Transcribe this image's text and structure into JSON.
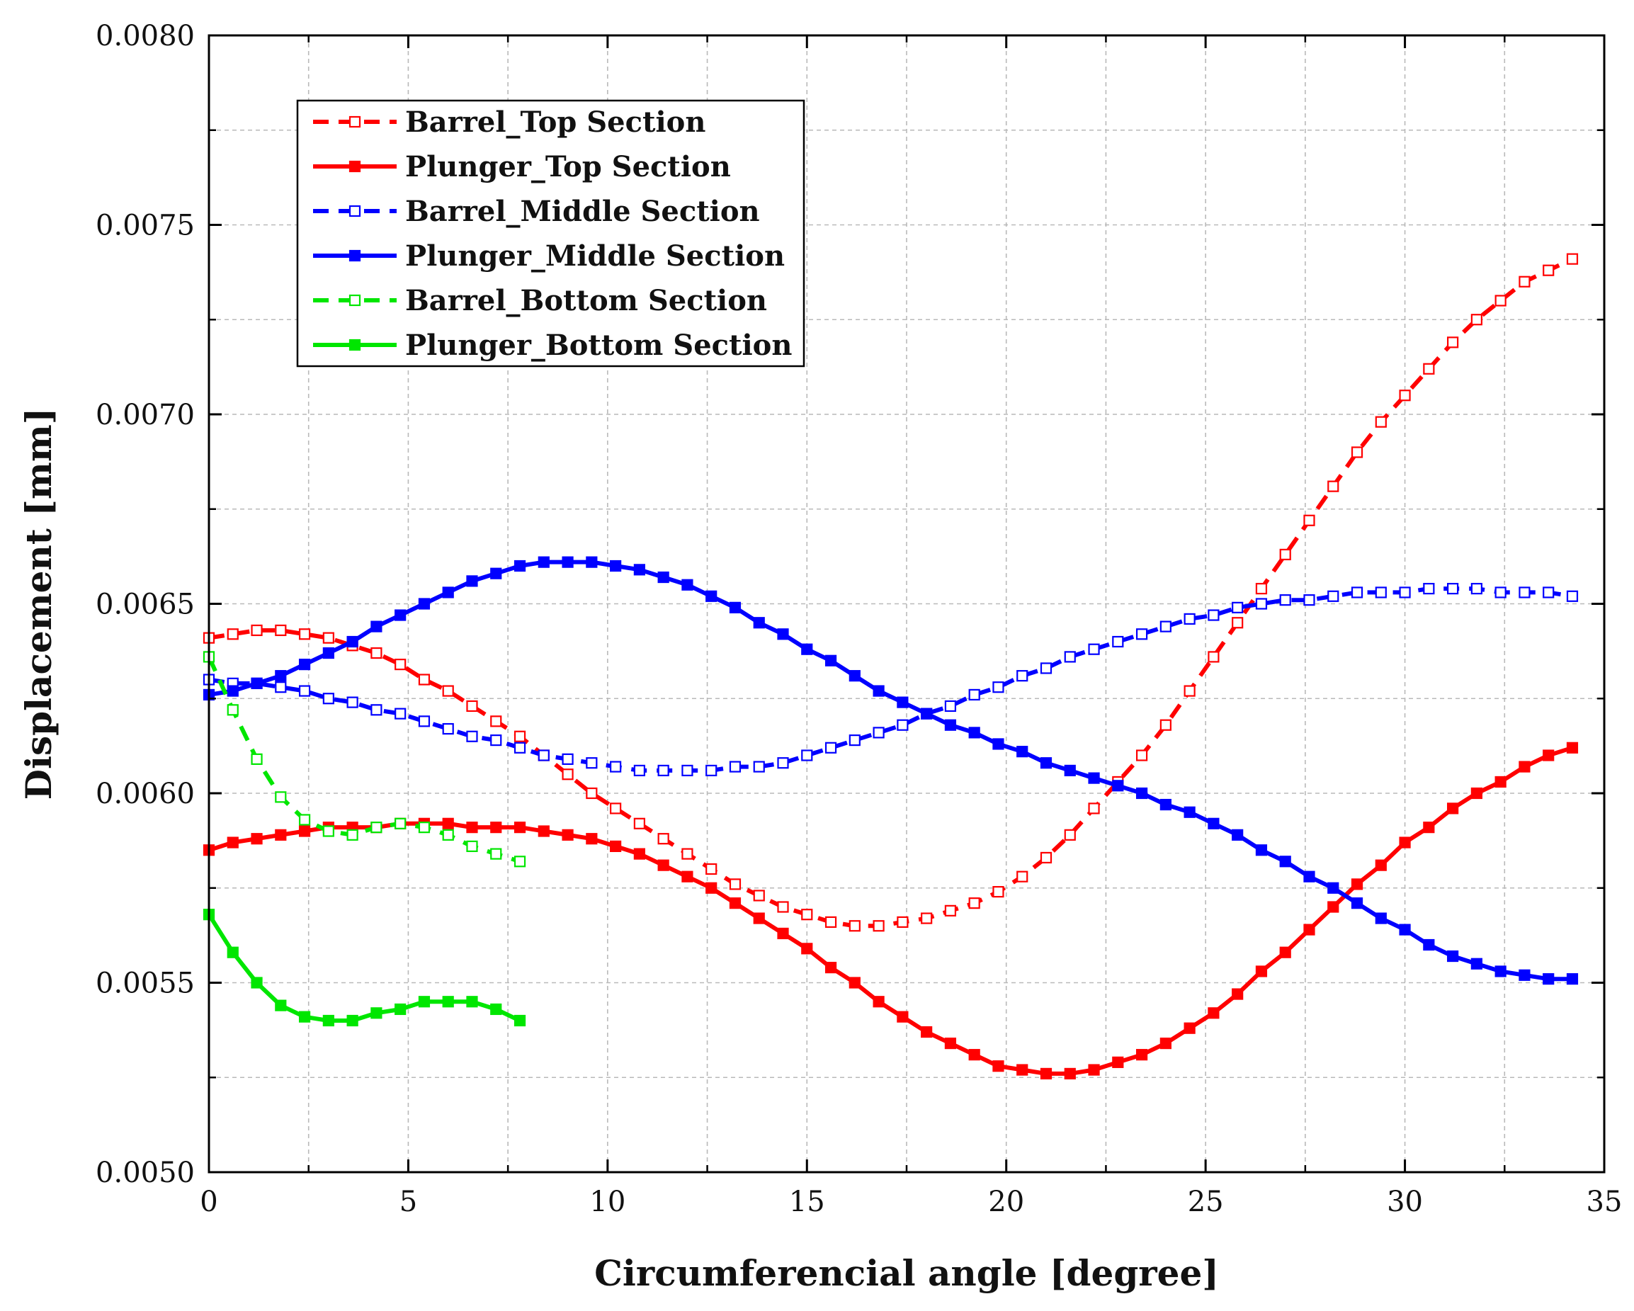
{
  "chart_data": {
    "type": "line",
    "title": "",
    "xlabel": "Circumferencial angle [degree]",
    "ylabel": "Displacement [mm]",
    "xlim": [
      0,
      35
    ],
    "ylim": [
      0.005,
      0.008
    ],
    "x_ticks": [
      0,
      5,
      10,
      15,
      20,
      25,
      30,
      35
    ],
    "x_tick_labels": [
      "0",
      "5",
      "10",
      "15",
      "20",
      "25",
      "30",
      "35"
    ],
    "y_ticks": [
      0.005,
      0.0055,
      0.006,
      0.0065,
      0.007,
      0.0075,
      0.008
    ],
    "y_tick_labels": [
      "0.0050",
      "0.0055",
      "0.0060",
      "0.0065",
      "0.0070",
      "0.0075",
      "0.0080"
    ],
    "grid": true,
    "legend_position": "top-left",
    "series": [
      {
        "name": "Barrel_Top Section",
        "color": "#ff0000",
        "line": "dashed",
        "marker": "open-square",
        "x": [
          0,
          0.6,
          1.2,
          1.8,
          2.4,
          3.0,
          3.6,
          4.2,
          4.8,
          5.4,
          6.0,
          6.6,
          7.2,
          7.8,
          8.4,
          9.0,
          9.6,
          10.2,
          10.8,
          11.4,
          12.0,
          12.6,
          13.2,
          13.8,
          14.4,
          15.0,
          15.6,
          16.2,
          16.8,
          17.4,
          18.0,
          18.6,
          19.2,
          19.8,
          20.4,
          21.0,
          21.6,
          22.2,
          22.8,
          23.4,
          24.0,
          24.6,
          25.2,
          25.8,
          26.4,
          27.0,
          27.6,
          28.2,
          28.8,
          29.4,
          30.0,
          30.6,
          31.2,
          31.8,
          32.4,
          33.0,
          33.6,
          34.2
        ],
        "values": [
          0.00641,
          0.00642,
          0.00643,
          0.00643,
          0.00642,
          0.00641,
          0.00639,
          0.00637,
          0.00634,
          0.0063,
          0.00627,
          0.00623,
          0.00619,
          0.00615,
          0.0061,
          0.00605,
          0.006,
          0.00596,
          0.00592,
          0.00588,
          0.00584,
          0.0058,
          0.00576,
          0.00573,
          0.0057,
          0.00568,
          0.00566,
          0.00565,
          0.00565,
          0.00566,
          0.00567,
          0.00569,
          0.00571,
          0.00574,
          0.00578,
          0.00583,
          0.00589,
          0.00596,
          0.00603,
          0.0061,
          0.00618,
          0.00627,
          0.00636,
          0.00645,
          0.00654,
          0.00663,
          0.00672,
          0.00681,
          0.0069,
          0.00698,
          0.00705,
          0.00712,
          0.00719,
          0.00725,
          0.0073,
          0.00735,
          0.00738,
          0.00741
        ]
      },
      {
        "name": "Plunger_Top Section",
        "color": "#ff0000",
        "line": "solid",
        "marker": "filled-square",
        "x": [
          0,
          0.6,
          1.2,
          1.8,
          2.4,
          3.0,
          3.6,
          4.2,
          4.8,
          5.4,
          6.0,
          6.6,
          7.2,
          7.8,
          8.4,
          9.0,
          9.6,
          10.2,
          10.8,
          11.4,
          12.0,
          12.6,
          13.2,
          13.8,
          14.4,
          15.0,
          15.6,
          16.2,
          16.8,
          17.4,
          18.0,
          18.6,
          19.2,
          19.8,
          20.4,
          21.0,
          21.6,
          22.2,
          22.8,
          23.4,
          24.0,
          24.6,
          25.2,
          25.8,
          26.4,
          27.0,
          27.6,
          28.2,
          28.8,
          29.4,
          30.0,
          30.6,
          31.2,
          31.8,
          32.4,
          33.0,
          33.6,
          34.2
        ],
        "values": [
          0.00585,
          0.00587,
          0.00588,
          0.00589,
          0.0059,
          0.00591,
          0.00591,
          0.00591,
          0.00592,
          0.00592,
          0.00592,
          0.00591,
          0.00591,
          0.00591,
          0.0059,
          0.00589,
          0.00588,
          0.00586,
          0.00584,
          0.00581,
          0.00578,
          0.00575,
          0.00571,
          0.00567,
          0.00563,
          0.00559,
          0.00554,
          0.0055,
          0.00545,
          0.00541,
          0.00537,
          0.00534,
          0.00531,
          0.00528,
          0.00527,
          0.00526,
          0.00526,
          0.00527,
          0.00529,
          0.00531,
          0.00534,
          0.00538,
          0.00542,
          0.00547,
          0.00553,
          0.00558,
          0.00564,
          0.0057,
          0.00576,
          0.00581,
          0.00587,
          0.00591,
          0.00596,
          0.006,
          0.00603,
          0.00607,
          0.0061,
          0.00612
        ]
      },
      {
        "name": "Barrel_Middle Section",
        "color": "#0000ff",
        "line": "dashed",
        "marker": "open-square",
        "x": [
          0,
          0.6,
          1.2,
          1.8,
          2.4,
          3.0,
          3.6,
          4.2,
          4.8,
          5.4,
          6.0,
          6.6,
          7.2,
          7.8,
          8.4,
          9.0,
          9.6,
          10.2,
          10.8,
          11.4,
          12.0,
          12.6,
          13.2,
          13.8,
          14.4,
          15.0,
          15.6,
          16.2,
          16.8,
          17.4,
          18.0,
          18.6,
          19.2,
          19.8,
          20.4,
          21.0,
          21.6,
          22.2,
          22.8,
          23.4,
          24.0,
          24.6,
          25.2,
          25.8,
          26.4,
          27.0,
          27.6,
          28.2,
          28.8,
          29.4,
          30.0,
          30.6,
          31.2,
          31.8,
          32.4,
          33.0,
          33.6,
          34.2
        ],
        "values": [
          0.0063,
          0.00629,
          0.00629,
          0.00628,
          0.00627,
          0.00625,
          0.00624,
          0.00622,
          0.00621,
          0.00619,
          0.00617,
          0.00615,
          0.00614,
          0.00612,
          0.0061,
          0.00609,
          0.00608,
          0.00607,
          0.00606,
          0.00606,
          0.00606,
          0.00606,
          0.00607,
          0.00607,
          0.00608,
          0.0061,
          0.00612,
          0.00614,
          0.00616,
          0.00618,
          0.00621,
          0.00623,
          0.00626,
          0.00628,
          0.00631,
          0.00633,
          0.00636,
          0.00638,
          0.0064,
          0.00642,
          0.00644,
          0.00646,
          0.00647,
          0.00649,
          0.0065,
          0.00651,
          0.00651,
          0.00652,
          0.00653,
          0.00653,
          0.00653,
          0.00654,
          0.00654,
          0.00654,
          0.00653,
          0.00653,
          0.00653,
          0.00652
        ]
      },
      {
        "name": "Plunger_Middle Section",
        "color": "#0000ff",
        "line": "solid",
        "marker": "filled-square",
        "x": [
          0,
          0.6,
          1.2,
          1.8,
          2.4,
          3.0,
          3.6,
          4.2,
          4.8,
          5.4,
          6.0,
          6.6,
          7.2,
          7.8,
          8.4,
          9.0,
          9.6,
          10.2,
          10.8,
          11.4,
          12.0,
          12.6,
          13.2,
          13.8,
          14.4,
          15.0,
          15.6,
          16.2,
          16.8,
          17.4,
          18.0,
          18.6,
          19.2,
          19.8,
          20.4,
          21.0,
          21.6,
          22.2,
          22.8,
          23.4,
          24.0,
          24.6,
          25.2,
          25.8,
          26.4,
          27.0,
          27.6,
          28.2,
          28.8,
          29.4,
          30.0,
          30.6,
          31.2,
          31.8,
          32.4,
          33.0,
          33.6,
          34.2
        ],
        "values": [
          0.00626,
          0.00627,
          0.00629,
          0.00631,
          0.00634,
          0.00637,
          0.0064,
          0.00644,
          0.00647,
          0.0065,
          0.00653,
          0.00656,
          0.00658,
          0.0066,
          0.00661,
          0.00661,
          0.00661,
          0.0066,
          0.00659,
          0.00657,
          0.00655,
          0.00652,
          0.00649,
          0.00645,
          0.00642,
          0.00638,
          0.00635,
          0.00631,
          0.00627,
          0.00624,
          0.00621,
          0.00618,
          0.00616,
          0.00613,
          0.00611,
          0.00608,
          0.00606,
          0.00604,
          0.00602,
          0.006,
          0.00597,
          0.00595,
          0.00592,
          0.00589,
          0.00585,
          0.00582,
          0.00578,
          0.00575,
          0.00571,
          0.00567,
          0.00564,
          0.0056,
          0.00557,
          0.00555,
          0.00553,
          0.00552,
          0.00551,
          0.00551
        ]
      },
      {
        "name": "Barrel_Bottom Section",
        "color": "#00e600",
        "line": "dashed",
        "marker": "open-square",
        "x": [
          0,
          0.6,
          1.2,
          1.8,
          2.4,
          3.0,
          3.6,
          4.2,
          4.8,
          5.4,
          6.0,
          6.6,
          7.2,
          7.8
        ],
        "values": [
          0.00636,
          0.00622,
          0.00609,
          0.00599,
          0.00593,
          0.0059,
          0.00589,
          0.00591,
          0.00592,
          0.00591,
          0.00589,
          0.00586,
          0.00584,
          0.00582
        ]
      },
      {
        "name": "Plunger_Bottom Section",
        "color": "#00e600",
        "line": "solid",
        "marker": "filled-square",
        "x": [
          0,
          0.6,
          1.2,
          1.8,
          2.4,
          3.0,
          3.6,
          4.2,
          4.8,
          5.4,
          6.0,
          6.6,
          7.2,
          7.8
        ],
        "values": [
          0.00568,
          0.00558,
          0.0055,
          0.00544,
          0.00541,
          0.0054,
          0.0054,
          0.00542,
          0.00543,
          0.00545,
          0.00545,
          0.00545,
          0.00543,
          0.0054
        ]
      }
    ]
  }
}
